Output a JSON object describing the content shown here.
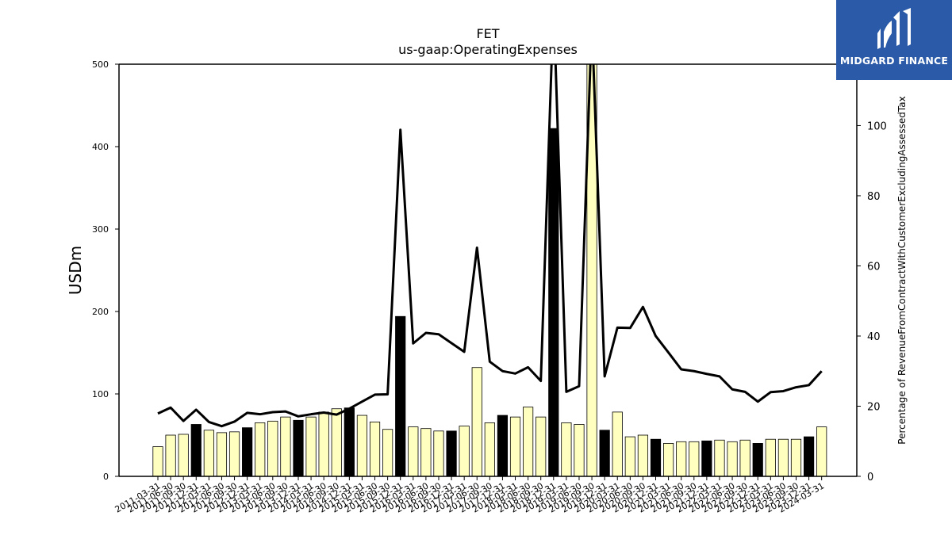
{
  "chart_data": {
    "type": "bar",
    "title": "FET",
    "subtitle": "us-gaap:OperatingExpenses",
    "ylabel": "USDm",
    "y2label": "Percentage of RevenueFromContractWithCustomerExcludingAssessedTax",
    "ylim": [
      0,
      500
    ],
    "y2lim": [
      0,
      117.5
    ],
    "yticks": [
      0,
      100,
      200,
      300,
      400,
      500
    ],
    "y2ticks": [
      0,
      20,
      40,
      60,
      80,
      100
    ],
    "categories": [
      "2011-03-31",
      "2011-06-30",
      "2011-09-30",
      "2011-12-31",
      "2012-03-31",
      "2012-06-30",
      "2012-09-30",
      "2012-12-31",
      "2013-03-31",
      "2013-06-30",
      "2013-09-30",
      "2013-12-31",
      "2014-03-31",
      "2014-06-30",
      "2014-09-30",
      "2014-12-31",
      "2015-03-31",
      "2015-06-30",
      "2015-09-30",
      "2015-12-31",
      "2016-03-31",
      "2016-06-30",
      "2016-09-30",
      "2016-12-31",
      "2017-03-31",
      "2017-06-30",
      "2017-09-30",
      "2017-12-31",
      "2018-03-31",
      "2018-06-30",
      "2018-09-30",
      "2018-12-31",
      "2019-03-31",
      "2019-06-30",
      "2019-09-30",
      "2019-12-31",
      "2020-03-31",
      "2020-06-30",
      "2020-09-30",
      "2020-12-31",
      "2021-03-31",
      "2021-06-30",
      "2021-09-30",
      "2021-12-31",
      "2022-03-31",
      "2022-06-30",
      "2022-09-30",
      "2022-12-31",
      "2023-03-31",
      "2023-06-30",
      "2023-09-30",
      "2023-12-31",
      "2024-03-31"
    ],
    "series": [
      {
        "type": "bar",
        "axis": "left",
        "values": [
          36,
          50,
          51,
          63,
          56,
          53,
          54,
          59,
          65,
          67,
          72,
          68,
          72,
          78,
          82,
          83,
          74,
          66,
          57,
          194,
          60,
          58,
          55,
          55,
          61,
          132,
          65,
          74,
          72,
          84,
          72,
          422,
          65,
          63,
          500,
          56,
          78,
          48,
          50,
          45,
          40,
          42,
          42,
          43,
          44,
          42,
          44,
          40,
          45,
          45,
          45,
          48,
          60
        ],
        "highlight": [
          false,
          false,
          false,
          true,
          false,
          false,
          false,
          true,
          false,
          false,
          false,
          true,
          false,
          false,
          false,
          true,
          false,
          false,
          false,
          true,
          false,
          false,
          false,
          true,
          false,
          false,
          false,
          true,
          false,
          false,
          false,
          true,
          false,
          false,
          false,
          true,
          false,
          false,
          false,
          true,
          false,
          false,
          false,
          true,
          false,
          false,
          false,
          true,
          false,
          false,
          false,
          true,
          false
        ]
      },
      {
        "type": "line",
        "axis": "right",
        "values": [
          17.9,
          19.6,
          15.8,
          19.0,
          15.5,
          14.3,
          15.6,
          18.1,
          17.7,
          18.3,
          18.5,
          17.1,
          17.7,
          18.2,
          17.6,
          19.3,
          21.3,
          23.3,
          23.4,
          98.8,
          37.9,
          40.9,
          40.5,
          38.0,
          35.5,
          65.2,
          32.7,
          30.0,
          29.3,
          31.1,
          27.2,
          135,
          24.1,
          25.7,
          130,
          28.5,
          42.4,
          42.3,
          48.3,
          40.0,
          35.3,
          30.5,
          30.0,
          29.2,
          28.5,
          24.8,
          24.1,
          21.3,
          24.0,
          24.3,
          25.4,
          26.0,
          30.0
        ]
      }
    ],
    "colors": {
      "bar": "#ffffc0",
      "bar_highlight": "#000000",
      "bar_edge": "#000000",
      "line": "#000000"
    },
    "grid": false,
    "legend": "none"
  },
  "logo": {
    "text": "MIDGARD FINANCE"
  }
}
